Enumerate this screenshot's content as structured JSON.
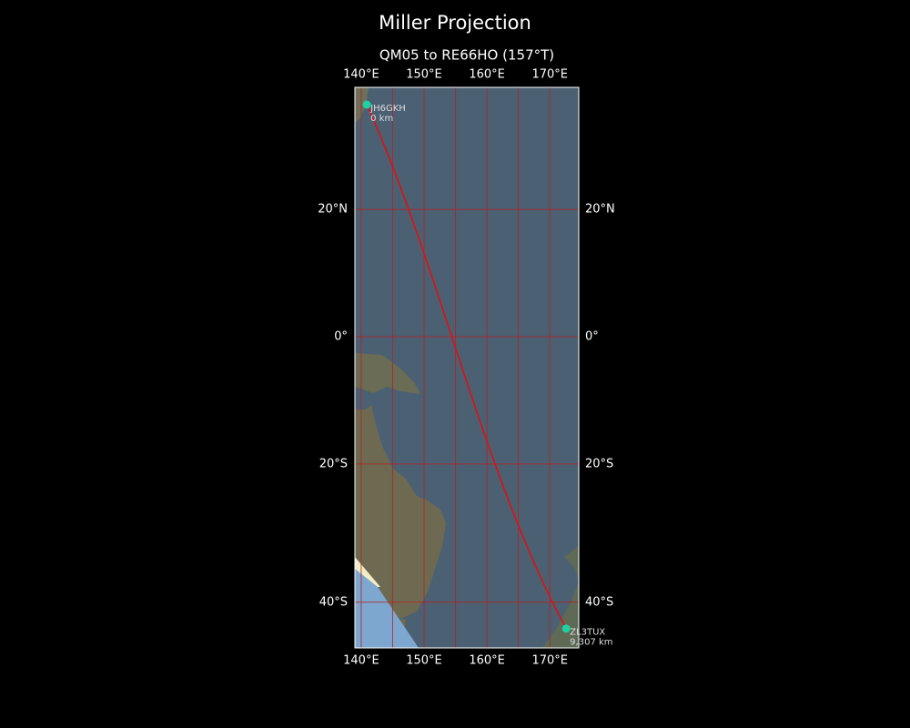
{
  "map": {
    "title": "Miller Projection",
    "subtitle": "QM05 to RE66HO (157°T)",
    "projection": "miller",
    "xlim": [
      139.0,
      174.6
    ],
    "ylim": [
      -46.0,
      37.8
    ],
    "xticks": [
      {
        "value": 140,
        "label": "140°E"
      },
      {
        "value": 150,
        "label": "150°E"
      },
      {
        "value": 160,
        "label": "160°E"
      },
      {
        "value": 170,
        "label": "170°E"
      }
    ],
    "yticks": [
      {
        "value": 20,
        "label": "20°N"
      },
      {
        "value": 0,
        "label": "0°"
      },
      {
        "value": -20,
        "label": "20°S"
      },
      {
        "value": -40,
        "label": "40°S"
      }
    ],
    "xgrid": [
      140,
      145,
      150,
      155,
      160,
      165,
      170
    ],
    "grid_color": "#b22222",
    "route_color": "#e01010",
    "point_color": "#1fd1a0",
    "points": [
      {
        "name": "JH6GKH",
        "distance": "0 km",
        "lon": 140.9,
        "lat": 35.4
      },
      {
        "name": "ZL3TUX",
        "distance": "9,307 km",
        "lon": 172.6,
        "lat": -43.5
      }
    ]
  }
}
